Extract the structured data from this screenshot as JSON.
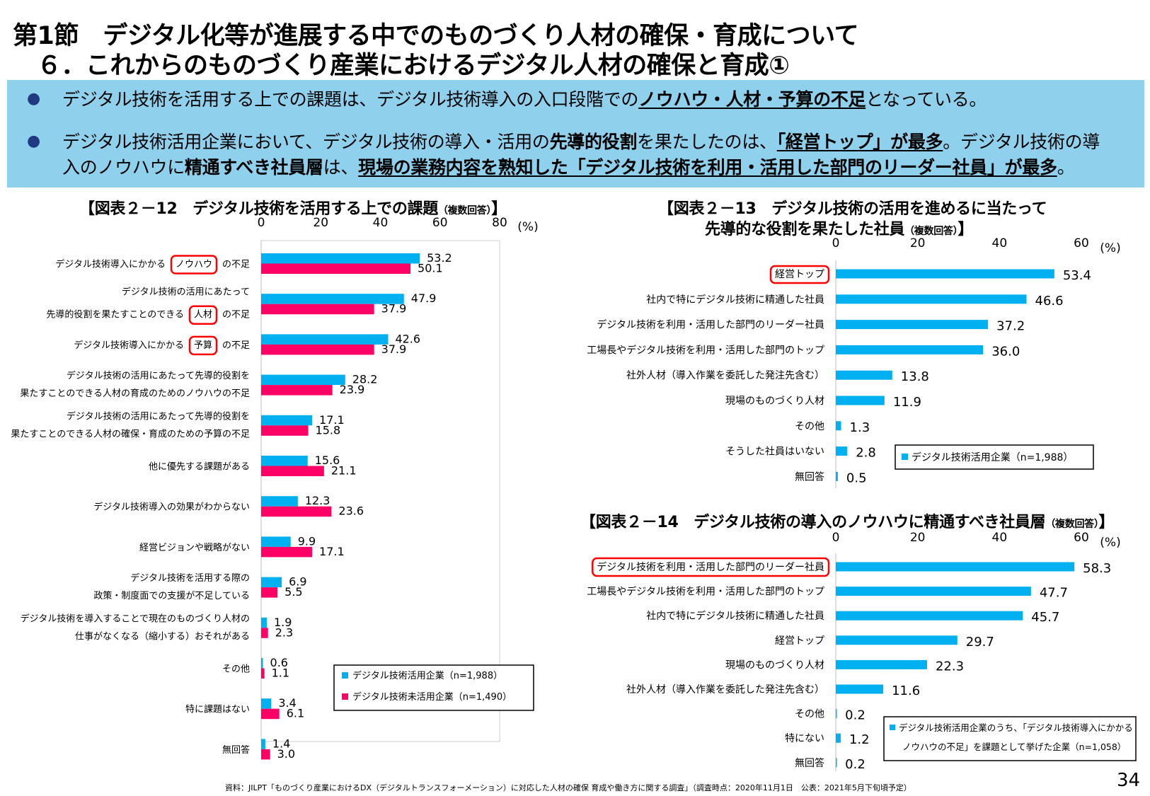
{
  "header": {
    "title_line1": "第1節　デジタル化等が進展する中でのものづくり人材の確保・育成について",
    "title_line2": "６．これからのものづくり産業におけるデジタル人材の確保と育成①"
  },
  "summary": {
    "bullet_symbol": "●",
    "b1_pre": "デジタル技術を活用する上での課題は、デジタル技術導入の入口段階での",
    "b1_em": "ノウハウ・人材・予算の不足",
    "b1_post": "となっている。",
    "b2_l1_pre": "デジタル技術活用企業において、デジタル技術の導入・活用の",
    "b2_l1_em1": "先導的役割",
    "b2_l1_mid": "を果たしたのは、",
    "b2_l1_em2": "「経営トップ」が最多",
    "b2_l1_post": "。デジタル技術の導",
    "b2_l2_pre": "入のノウハウに",
    "b2_l2_em1": "精通すべき社員層",
    "b2_l2_mid": "は、",
    "b2_l2_em2": "現場の業務内容を熟知した「デジタル技術を利用・活用した部門のリーダー社員」が最多",
    "b2_l2_post": "。"
  },
  "colors": {
    "blue": "#00b0f0",
    "pink": "#ff0066",
    "red_box": "#ff0000",
    "band": "#8fd0ec"
  },
  "fig12": {
    "title": "【図表２－12　デジタル技術を活用する上での課題",
    "title_small": "（複数回答）",
    "title_end": "】",
    "chart_data": {
      "type": "bar",
      "orientation": "horizontal",
      "xlim": [
        0,
        80
      ],
      "ticks": [
        0,
        20,
        40,
        60,
        80
      ],
      "unit": "(%)",
      "categories": [
        {
          "lines": [
            "デジタル技術導入にかかる",
            "ノウハウ",
            "の不足"
          ],
          "boxed": 1
        },
        {
          "lines": [
            "デジタル技術の活用にあたって",
            "先導的役割を果たすことのできる",
            "人材",
            "の不足"
          ],
          "boxed": 2
        },
        {
          "lines": [
            "デジタル技術導入にかかる",
            "予算",
            "の不足"
          ],
          "boxed": 1
        },
        {
          "lines": [
            "デジタル技術の活用にあたって先導的役割を",
            "果たすことのできる人材の育成のためのノウハウの不足"
          ]
        },
        {
          "lines": [
            "デジタル技術の活用にあたって先導的役割を",
            "果たすことのできる人材の確保・育成のための予算の不足"
          ]
        },
        {
          "lines": [
            "他に優先する課題がある"
          ]
        },
        {
          "lines": [
            "デジタル技術導入の効果がわからない"
          ]
        },
        {
          "lines": [
            "経営ビジョンや戦略がない"
          ]
        },
        {
          "lines": [
            "デジタル技術を活用する際の",
            "政策・制度面での支援が不足している"
          ]
        },
        {
          "lines": [
            "デジタル技術を導入することで現在のものづくり人材の",
            "仕事がなくなる（縮小する）おそれがある"
          ]
        },
        {
          "lines": [
            "その他"
          ]
        },
        {
          "lines": [
            "特に課題はない"
          ]
        },
        {
          "lines": [
            "無回答"
          ]
        }
      ],
      "series": [
        {
          "name": "デジタル技術活用企業（n=1,988）",
          "color": "#00b0f0",
          "values": [
            53.2,
            47.9,
            42.6,
            28.2,
            17.1,
            15.6,
            12.3,
            9.9,
            6.9,
            1.9,
            0.6,
            3.4,
            1.4
          ]
        },
        {
          "name": "デジタル技術未活用企業（n=1,490）",
          "color": "#ff0066",
          "values": [
            50.1,
            37.9,
            37.9,
            23.9,
            15.8,
            21.1,
            23.6,
            17.1,
            5.5,
            2.3,
            1.1,
            6.1,
            3.0
          ]
        }
      ]
    }
  },
  "fig13": {
    "title_l1": "【図表２－13　デジタル技術の活用を進めるに当たって",
    "title_l2": "先導的な役割を果たした社員",
    "title_small": "（複数回答）",
    "title_end": "】",
    "chart_data": {
      "type": "bar",
      "orientation": "horizontal",
      "xlim": [
        0,
        60
      ],
      "ticks": [
        0,
        20,
        40,
        60
      ],
      "unit": "(%)",
      "categories": [
        "経営トップ",
        "社内で特にデジタル技術に精通した社員",
        "デジタル技術を利用・活用した部門のリーダー社員",
        "工場長やデジタル技術を利用・活用した部門のトップ",
        "社外人材（導入作業を委託した発注先含む）",
        "現場のものづくり人材",
        "その他",
        "そうした社員はいない",
        "無回答"
      ],
      "boxed_index": 0,
      "series": [
        {
          "name": "デジタル技術活用企業（n=1,988）",
          "color": "#00b0f0",
          "values": [
            53.4,
            46.6,
            37.2,
            36.0,
            13.8,
            11.9,
            1.3,
            2.8,
            0.5
          ]
        }
      ]
    }
  },
  "fig14": {
    "title": "【図表２－14　デジタル技術の導入のノウハウに精通すべき社員層",
    "title_small": "（複数回答）",
    "title_end": "】",
    "chart_data": {
      "type": "bar",
      "orientation": "horizontal",
      "xlim": [
        0,
        60
      ],
      "ticks": [
        0,
        20,
        40,
        60
      ],
      "unit": "(%)",
      "categories": [
        "デジタル技術を利用・活用した部門のリーダー社員",
        "工場長やデジタル技術を利用・活用した部門のトップ",
        "社内で特にデジタル技術に精通した社員",
        "経営トップ",
        "現場のものづくり人材",
        "社外人材（導入作業を委託した発注先含む）",
        "その他",
        "特にない",
        "無回答"
      ],
      "boxed_index": 0,
      "series": [
        {
          "name_l1": "デジタル技術活用企業のうち、「デジタル技術導入にかかる",
          "name_l2": "ノウハウの不足」を課題として挙げた企業（n=1,058）",
          "color": "#00b0f0",
          "values": [
            58.3,
            47.7,
            45.7,
            29.7,
            22.3,
            11.6,
            0.2,
            1.2,
            0.2
          ]
        }
      ]
    }
  },
  "footer": {
    "source": "資料：JILPT「ものづくり産業におけるDX（デジタルトランスフォーメーション）に対応した人材の確保 育成や働き方に関する調査」（調査時点：2020年11月1日　公表：2021年5月下旬頃予定）",
    "page": "34"
  }
}
